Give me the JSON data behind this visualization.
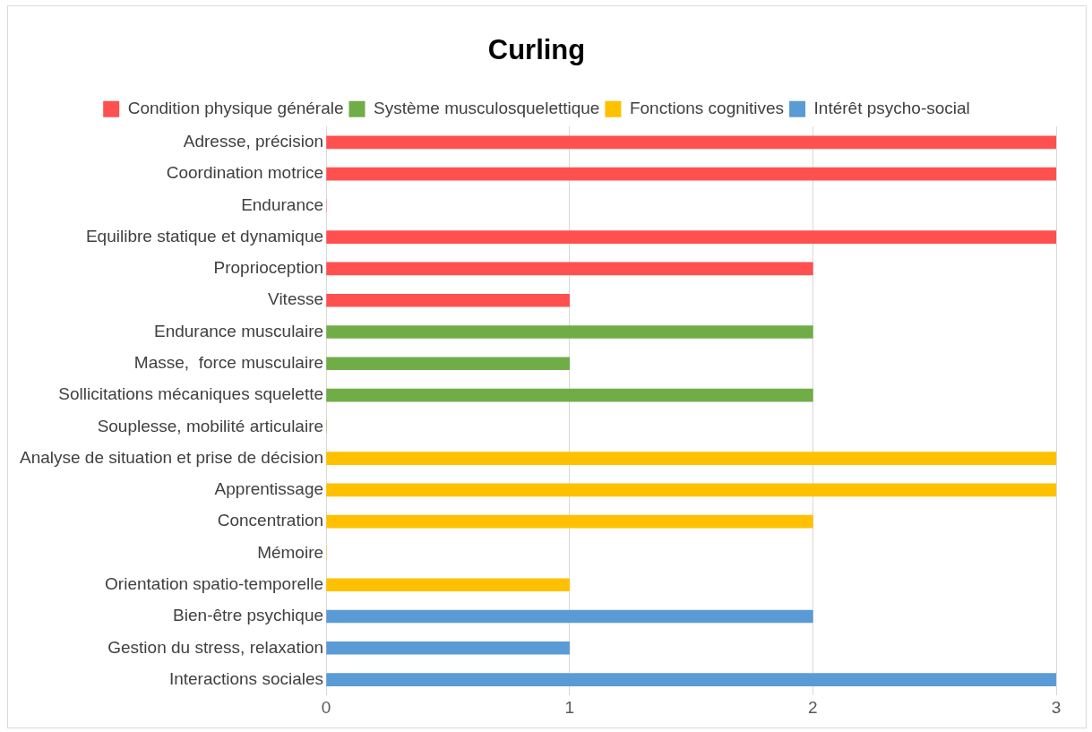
{
  "chart_data": {
    "type": "bar",
    "title": "Curling",
    "orientation": "horizontal",
    "categories": [
      "Adresse, précision",
      "Coordination motrice",
      "Endurance",
      "Equilibre statique et dynamique",
      "Proprioception",
      "Vitesse",
      "Endurance musculaire",
      "Masse,  force musculaire",
      "Sollicitations mécaniques squelette",
      "Souplesse, mobilité articulaire",
      "Analyse de situation et prise de décision",
      "Apprentissage",
      "Concentration",
      "Mémoire",
      "Orientation spatio-temporelle",
      "Bien-être psychique",
      "Gestion du stress, relaxation",
      "Interactions sociales"
    ],
    "series": [
      {
        "name": "Condition physique générale",
        "color": "#ff5050",
        "values": [
          3,
          3,
          0,
          3,
          2,
          1,
          null,
          null,
          null,
          null,
          null,
          null,
          null,
          null,
          null,
          null,
          null,
          null
        ]
      },
      {
        "name": "Système musculosquelettique",
        "color": "#70ad47",
        "values": [
          null,
          null,
          null,
          null,
          null,
          null,
          2,
          1,
          2,
          0,
          null,
          null,
          null,
          null,
          null,
          null,
          null,
          null
        ]
      },
      {
        "name": "Fonctions cognitives",
        "color": "#ffc000",
        "values": [
          null,
          null,
          null,
          null,
          null,
          null,
          null,
          null,
          null,
          null,
          3,
          3,
          2,
          0,
          1,
          null,
          null,
          null
        ]
      },
      {
        "name": "Intérêt psycho-social",
        "color": "#5b9bd5",
        "values": [
          null,
          null,
          null,
          null,
          null,
          null,
          null,
          null,
          null,
          null,
          null,
          null,
          null,
          null,
          null,
          2,
          1,
          3
        ]
      }
    ],
    "xlim": [
      0,
      3
    ],
    "xticks": [
      0,
      1,
      2,
      3
    ],
    "grid": "x",
    "legend": "top"
  }
}
